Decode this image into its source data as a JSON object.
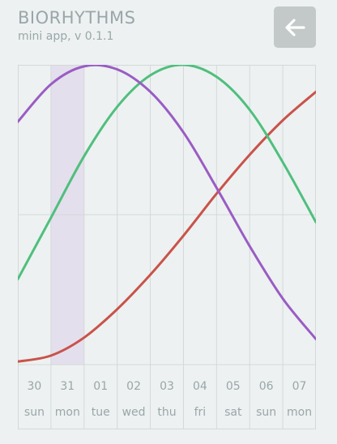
{
  "header": {
    "title": "BIORHYTHMS",
    "subtitle": "mini app, v 0.1.1",
    "back_icon": "arrow-left-icon"
  },
  "colors": {
    "background": "#edf1f1",
    "grid": "#d3d9d9",
    "selected_day": "#e4dfec",
    "physical": "#c9534a",
    "emotional": "#4fbf7d",
    "intellectual": "#9a5cc4",
    "label": "#9aa6a8",
    "button": "#c3c8c9"
  },
  "days": [
    {
      "num": "30",
      "name": "sun"
    },
    {
      "num": "31",
      "name": "mon"
    },
    {
      "num": "01",
      "name": "tue"
    },
    {
      "num": "02",
      "name": "wed"
    },
    {
      "num": "03",
      "name": "thu"
    },
    {
      "num": "04",
      "name": "fri"
    },
    {
      "num": "05",
      "name": "sat"
    },
    {
      "num": "06",
      "name": "sun"
    },
    {
      "num": "07",
      "name": "mon"
    }
  ],
  "selected_day_index": 1,
  "chart_data": {
    "type": "line",
    "x": [
      0,
      1,
      2,
      3,
      4,
      5,
      6,
      7,
      8,
      9
    ],
    "ylim": [
      -1,
      1
    ],
    "series": [
      {
        "color": "#c9534a",
        "values": [
          -0.98,
          -0.94,
          -0.82,
          -0.63,
          -0.4,
          -0.14,
          0.14,
          0.4,
          0.63,
          0.82
        ]
      },
      {
        "color": "#4fbf7d",
        "values": [
          -0.43,
          -0.02,
          0.39,
          0.72,
          0.93,
          1.0,
          0.92,
          0.7,
          0.35,
          -0.05
        ]
      },
      {
        "color": "#9a5cc4",
        "values": [
          0.62,
          0.87,
          0.99,
          0.97,
          0.82,
          0.55,
          0.18,
          -0.21,
          -0.56,
          -0.83
        ]
      }
    ]
  }
}
